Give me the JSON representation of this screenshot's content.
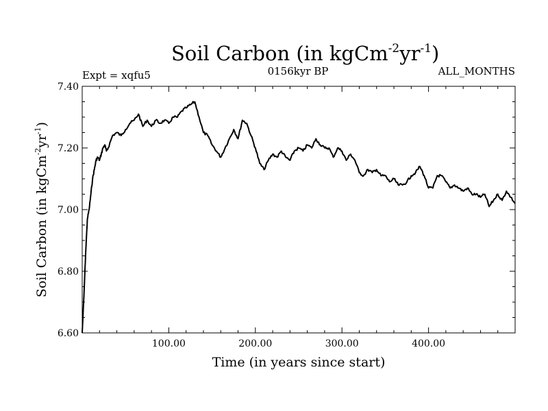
{
  "chart_data": {
    "type": "line",
    "title": "Soil Carbon (in kgCm",
    "title_sup1": "-2",
    "title_mid": "yr",
    "title_sup2": "-1",
    "title_end": ")",
    "subtitle_left": "Expt = xqfu5",
    "subtitle_center": "0156kyr BP",
    "subtitle_right": "ALL_MONTHS",
    "xlabel": "Time (in years since start)",
    "ylabel_main": "Soil Carbon (in kgCm",
    "ylabel_sup1": "-2",
    "ylabel_mid": "yr",
    "ylabel_sup2": "-1",
    "ylabel_end": ")",
    "xlim": [
      0,
      500
    ],
    "ylim": [
      6.6,
      7.4
    ],
    "x_ticks": [
      100,
      200,
      300,
      400
    ],
    "x_tick_labels": [
      "100.00",
      "200.00",
      "300.00",
      "400.00"
    ],
    "y_ticks": [
      6.6,
      6.8,
      7.0,
      7.2,
      7.4
    ],
    "y_tick_labels": [
      "6.60",
      "6.80",
      "7.00",
      "7.20",
      "7.40"
    ],
    "grid": false,
    "series": [
      {
        "name": "Soil Carbon",
        "x": [
          0,
          2,
          4,
          6,
          8,
          10,
          12,
          14,
          16,
          18,
          20,
          22,
          24,
          26,
          28,
          30,
          35,
          40,
          45,
          50,
          55,
          60,
          65,
          70,
          75,
          80,
          85,
          90,
          95,
          100,
          105,
          110,
          115,
          120,
          125,
          130,
          135,
          140,
          145,
          150,
          155,
          160,
          165,
          170,
          175,
          180,
          185,
          190,
          195,
          200,
          205,
          210,
          215,
          220,
          225,
          230,
          235,
          240,
          245,
          250,
          255,
          260,
          265,
          270,
          275,
          280,
          285,
          290,
          295,
          300,
          305,
          310,
          315,
          320,
          325,
          330,
          335,
          340,
          345,
          350,
          355,
          360,
          365,
          370,
          375,
          380,
          385,
          390,
          395,
          400,
          405,
          410,
          415,
          420,
          425,
          430,
          435,
          440,
          445,
          450,
          455,
          460,
          465,
          470,
          475,
          480,
          485,
          490,
          495,
          500
        ],
        "y": [
          6.6,
          6.72,
          6.86,
          6.97,
          7.0,
          7.05,
          7.1,
          7.13,
          7.16,
          7.17,
          7.16,
          7.18,
          7.2,
          7.21,
          7.19,
          7.2,
          7.24,
          7.25,
          7.24,
          7.26,
          7.28,
          7.29,
          7.31,
          7.27,
          7.29,
          7.27,
          7.29,
          7.28,
          7.29,
          7.28,
          7.3,
          7.3,
          7.32,
          7.33,
          7.34,
          7.35,
          7.3,
          7.25,
          7.24,
          7.21,
          7.19,
          7.17,
          7.2,
          7.23,
          7.26,
          7.23,
          7.29,
          7.28,
          7.24,
          7.2,
          7.15,
          7.13,
          7.16,
          7.18,
          7.17,
          7.19,
          7.17,
          7.16,
          7.19,
          7.2,
          7.19,
          7.21,
          7.2,
          7.23,
          7.21,
          7.2,
          7.2,
          7.17,
          7.2,
          7.19,
          7.16,
          7.18,
          7.16,
          7.12,
          7.11,
          7.13,
          7.12,
          7.13,
          7.11,
          7.11,
          7.09,
          7.1,
          7.08,
          7.08,
          7.09,
          7.11,
          7.12,
          7.14,
          7.11,
          7.07,
          7.07,
          7.11,
          7.11,
          7.09,
          7.07,
          7.08,
          7.07,
          7.06,
          7.07,
          7.05,
          7.05,
          7.04,
          7.05,
          7.01,
          7.03,
          7.05,
          7.03,
          7.06,
          7.04,
          7.02
        ]
      }
    ]
  }
}
